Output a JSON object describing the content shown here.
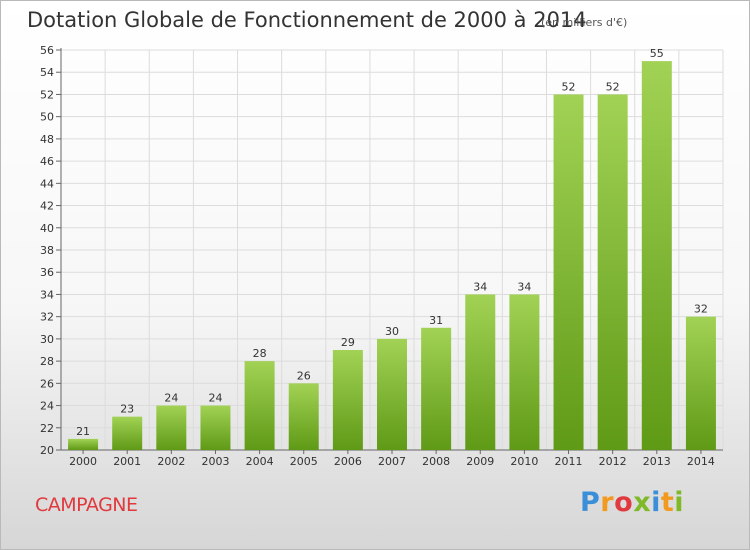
{
  "header": {
    "title": "Dotation Globale de Fonctionnement de 2000 à 2014",
    "subtitle": "(en milliers d'€)"
  },
  "footer": {
    "commune": "CAMPAGNE",
    "logo_text": "Proxiti"
  },
  "colors": {
    "bar_light": "#a2d255",
    "bar_dark": "#5f9a16",
    "grid": "#dcdcdc",
    "commune": "#e0393e"
  },
  "chart_data": {
    "type": "bar",
    "title": "Dotation Globale de Fonctionnement de 2000 à 2014",
    "subtitle": "(en milliers d'€)",
    "xlabel": "",
    "ylabel": "",
    "categories": [
      "2000",
      "2001",
      "2002",
      "2003",
      "2004",
      "2005",
      "2006",
      "2007",
      "2008",
      "2009",
      "2010",
      "2011",
      "2012",
      "2013",
      "2014"
    ],
    "values": [
      21,
      23,
      24,
      24,
      28,
      26,
      29,
      30,
      31,
      34,
      34,
      52,
      52,
      55,
      32
    ],
    "ylim": [
      20,
      56
    ],
    "yticks": [
      20,
      22,
      24,
      26,
      28,
      30,
      32,
      34,
      36,
      38,
      40,
      42,
      44,
      46,
      48,
      50,
      52,
      54,
      56
    ],
    "grid": true,
    "data_labels": true
  }
}
